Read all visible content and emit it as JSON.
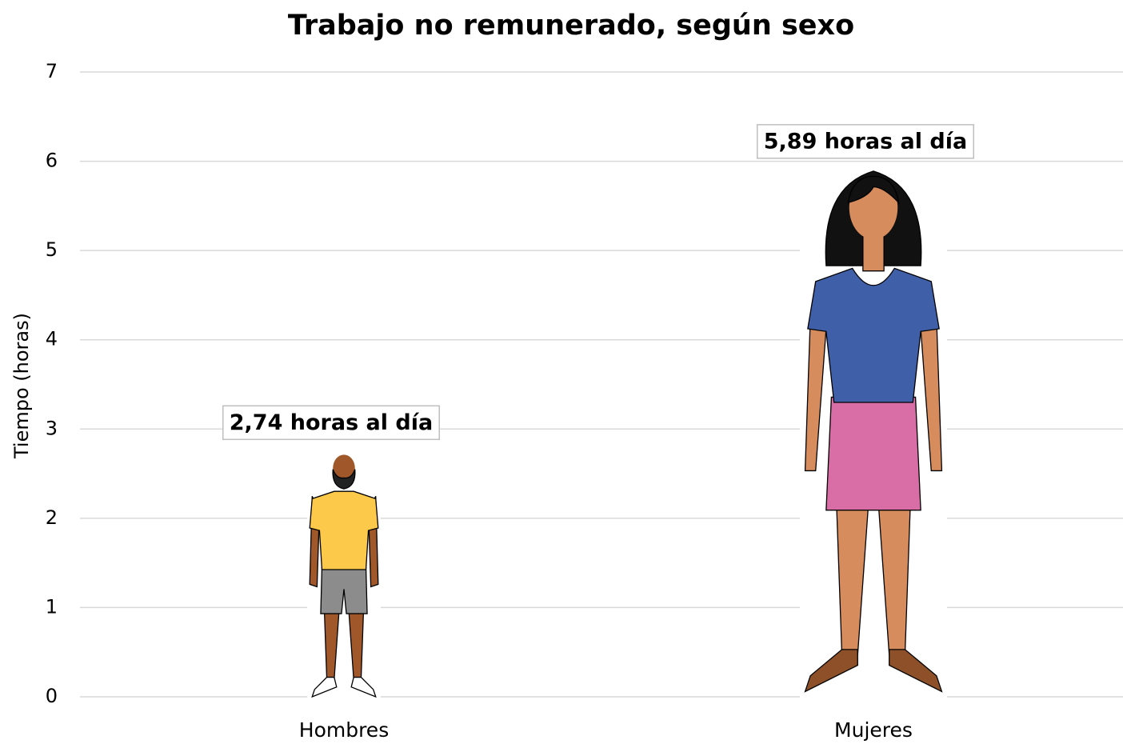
{
  "chart_data": {
    "type": "pictograph",
    "title": "Trabajo no remunerado, según sexo",
    "y_label": "Tiempo (horas)",
    "categories": [
      "Hombres",
      "Mujeres"
    ],
    "values": [
      2.74,
      5.89
    ],
    "value_labels": [
      "2,74 horas al día",
      "5,89 horas al día"
    ],
    "ylim": [
      0,
      7
    ],
    "yticks": [
      0,
      1,
      2,
      3,
      4,
      5,
      6,
      7
    ],
    "grid": true
  }
}
